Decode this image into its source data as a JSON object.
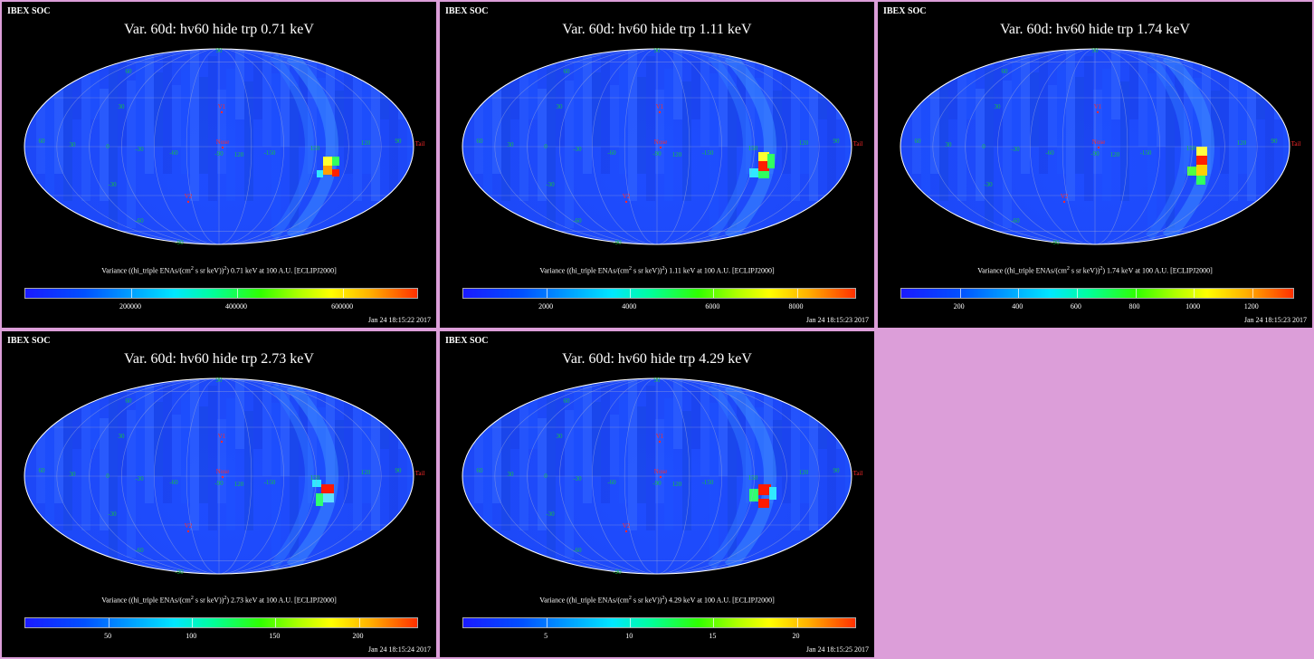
{
  "colors": {
    "background": "#dc9ed9",
    "panel": "#000000",
    "sky_base": "#1a50ff",
    "grid": "#8899cc"
  },
  "panels": [
    {
      "soc": "IBEX SOC",
      "title": "Var. 60d: hv60 hide trp 0.71 keV",
      "cb_pre": "Variance ((hi_triple ENAs/(cm",
      "cb_exp1": "2",
      "cb_mid": " s sr keV))",
      "cb_exp2": "2",
      "cb_post": ") 0.71 keV at 100 A.U. [ECLIPJ2000]",
      "ticks": [
        "200000",
        "400000",
        "600000"
      ],
      "timestamp": "Jan 24 18:15:22 2017"
    },
    {
      "soc": "IBEX SOC",
      "title": "Var. 60d: hv60 hide trp 1.11 keV",
      "cb_pre": "Variance ((hi_triple ENAs/(cm",
      "cb_exp1": "2",
      "cb_mid": " s sr keV))",
      "cb_exp2": "2",
      "cb_post": ") 1.11 keV at 100 A.U. [ECLIPJ2000]",
      "ticks": [
        "2000",
        "4000",
        "6000",
        "8000"
      ],
      "timestamp": "Jan 24 18:15:23 2017"
    },
    {
      "soc": "IBEX SOC",
      "title": "Var. 60d: hv60 hide trp 1.74 keV",
      "cb_pre": "Variance ((hi_triple ENAs/(cm",
      "cb_exp1": "2",
      "cb_mid": " s sr keV))",
      "cb_exp2": "2",
      "cb_post": ") 1.74 keV at 100 A.U. [ECLIPJ2000]",
      "ticks": [
        "200",
        "400",
        "600",
        "800",
        "1000",
        "1200"
      ],
      "timestamp": "Jan 24 18:15:23 2017"
    },
    {
      "soc": "IBEX SOC",
      "title": "Var. 60d: hv60 hide trp 2.73 keV",
      "cb_pre": "Variance ((hi_triple ENAs/(cm",
      "cb_exp1": "2",
      "cb_mid": " s sr keV))",
      "cb_exp2": "2",
      "cb_post": ") 2.73 keV at 100 A.U. [ECLIPJ2000]",
      "ticks": [
        "50",
        "100",
        "150",
        "200"
      ],
      "timestamp": "Jan 24 18:15:24 2017"
    },
    {
      "soc": "IBEX SOC",
      "title": "Var. 60d: hv60 hide trp 4.29 keV",
      "cb_pre": "Variance ((hi_triple ENAs/(cm",
      "cb_exp1": "2",
      "cb_mid": " s sr keV))",
      "cb_exp2": "2",
      "cb_post": ") 4.29 keV at 100 A.U. [ECLIPJ2000]",
      "ticks": [
        "5",
        "10",
        "15",
        "20"
      ],
      "timestamp": "Jan 24 18:15:25 2017"
    }
  ],
  "chart_data": [
    {
      "type": "heatmap",
      "title": "Var. 60d: hv60 hide trp 0.71 keV",
      "projection": "Mollweide sky map",
      "colorbar": {
        "ticks": [
          200000,
          400000,
          600000
        ]
      },
      "map_labels": [
        "V1",
        "V2",
        "Nose",
        "Tail"
      ],
      "longitude_labels": [
        60,
        30,
        0,
        -30,
        -60,
        -90,
        120,
        -150,
        150,
        120,
        90
      ],
      "latitude_labels": [
        60,
        30,
        -30,
        -60
      ],
      "pole_labels": [
        90,
        -90
      ]
    },
    {
      "type": "heatmap",
      "title": "Var. 60d: hv60 hide trp 1.11 keV",
      "projection": "Mollweide sky map",
      "colorbar": {
        "ticks": [
          2000,
          4000,
          6000,
          8000
        ]
      },
      "map_labels": [
        "V1",
        "V2",
        "Nose",
        "Tail"
      ],
      "longitude_labels": [
        60,
        30,
        0,
        -30,
        -60,
        -90,
        120,
        -150,
        150,
        120,
        90
      ],
      "latitude_labels": [
        60,
        30,
        -30,
        -60
      ],
      "pole_labels": [
        90,
        -90
      ]
    },
    {
      "type": "heatmap",
      "title": "Var. 60d: hv60 hide trp 1.74 keV",
      "projection": "Mollweide sky map",
      "colorbar": {
        "ticks": [
          200,
          400,
          600,
          800,
          1000,
          1200
        ]
      },
      "map_labels": [
        "V1",
        "V2",
        "Nose",
        "Tail"
      ],
      "longitude_labels": [
        60,
        30,
        0,
        -30,
        -60,
        -90,
        120,
        -150,
        150,
        120,
        90
      ],
      "latitude_labels": [
        60,
        30,
        -30,
        -60
      ],
      "pole_labels": [
        90,
        -90
      ]
    },
    {
      "type": "heatmap",
      "title": "Var. 60d: hv60 hide trp 2.73 keV",
      "projection": "Mollweide sky map",
      "colorbar": {
        "ticks": [
          50,
          100,
          150,
          200
        ]
      },
      "map_labels": [
        "V1",
        "V2",
        "Nose",
        "Tail"
      ],
      "longitude_labels": [
        60,
        30,
        0,
        -30,
        -60,
        -90,
        120,
        -150,
        150,
        120,
        90
      ],
      "latitude_labels": [
        60,
        30,
        -30,
        -60
      ],
      "pole_labels": [
        90,
        -90
      ]
    },
    {
      "type": "heatmap",
      "title": "Var. 60d: hv60 hide trp 4.29 keV",
      "projection": "Mollweide sky map",
      "colorbar": {
        "ticks": [
          5,
          10,
          15,
          20
        ]
      },
      "map_labels": [
        "V1",
        "V2",
        "Nose",
        "Tail"
      ],
      "longitude_labels": [
        60,
        30,
        0,
        -30,
        -60,
        -90,
        120,
        -150,
        150,
        120,
        90
      ],
      "latitude_labels": [
        60,
        30,
        -30,
        -60
      ],
      "pole_labels": [
        90,
        -90
      ]
    }
  ]
}
